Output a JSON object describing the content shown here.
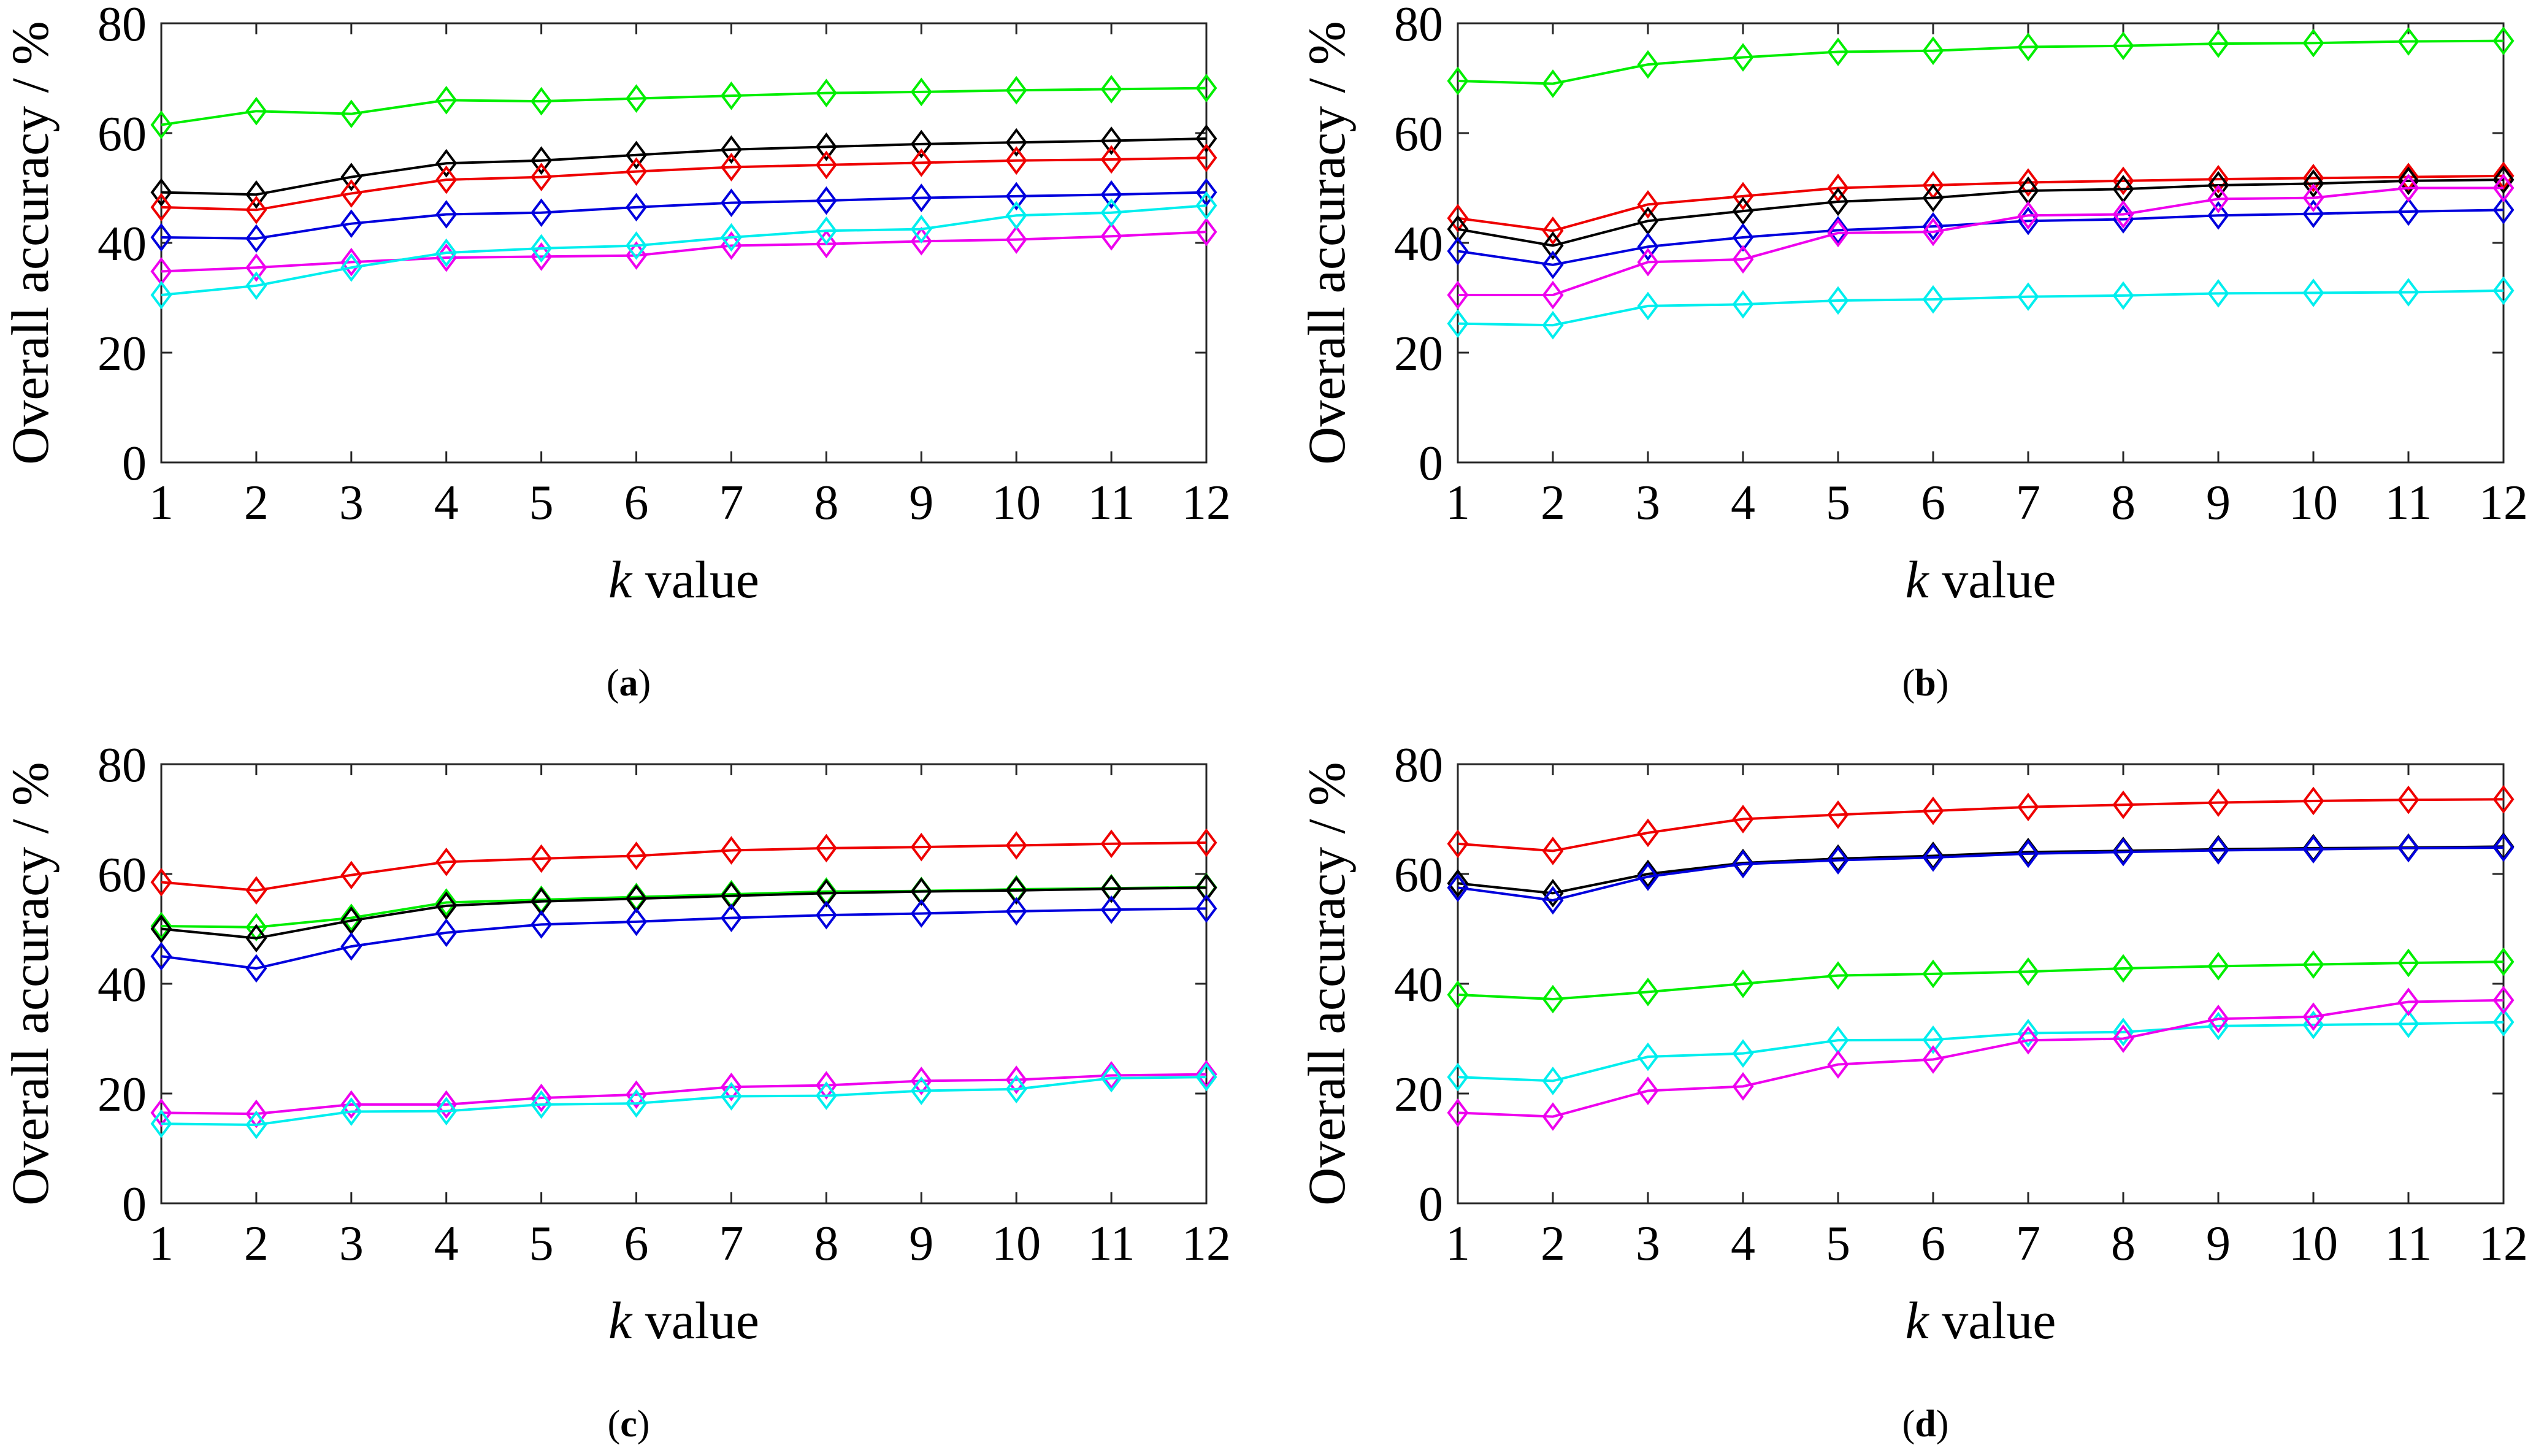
{
  "chart_data": [
    {
      "type": "line",
      "panel": "a",
      "caption_letter": "a",
      "x": [
        1,
        2,
        3,
        4,
        5,
        6,
        7,
        8,
        9,
        10,
        11,
        12
      ],
      "xlabel_var": "k",
      "xlabel_rest": " value",
      "ylabel": "Overall accuracy / %",
      "ylim": [
        0,
        80
      ],
      "xlim": [
        1,
        12
      ],
      "yticks": [
        0,
        20,
        40,
        60,
        80
      ],
      "series": [
        {
          "name": "green",
          "color": "#00ee00",
          "values": [
            61.5,
            64,
            63.5,
            66,
            65.8,
            66.3,
            66.8,
            67.3,
            67.5,
            67.8,
            68,
            68.2
          ]
        },
        {
          "name": "black",
          "color": "#000000",
          "values": [
            49.2,
            48.8,
            52,
            54.5,
            55,
            56,
            57,
            57.5,
            58,
            58.3,
            58.6,
            59
          ]
        },
        {
          "name": "red",
          "color": "#ee0000",
          "values": [
            46.5,
            46,
            49,
            51.5,
            52,
            53,
            53.8,
            54.2,
            54.6,
            55,
            55.2,
            55.5
          ]
        },
        {
          "name": "blue",
          "color": "#0000dd",
          "values": [
            41,
            40.8,
            43.5,
            45.2,
            45.5,
            46.5,
            47.3,
            47.7,
            48.2,
            48.5,
            48.8,
            49.2
          ]
        },
        {
          "name": "magenta",
          "color": "#ee00ee",
          "values": [
            34.8,
            35.5,
            36.5,
            37.3,
            37.5,
            37.7,
            39.5,
            39.8,
            40.3,
            40.6,
            41.2,
            42
          ]
        },
        {
          "name": "cyan",
          "color": "#00eeee",
          "values": [
            30.5,
            32.2,
            35.5,
            38.2,
            39,
            39.5,
            41,
            42.2,
            42.5,
            45,
            45.5,
            46.8
          ]
        }
      ]
    },
    {
      "type": "line",
      "panel": "b",
      "caption_letter": "b",
      "x": [
        1,
        2,
        3,
        4,
        5,
        6,
        7,
        8,
        9,
        10,
        11,
        12
      ],
      "xlabel_var": "k",
      "xlabel_rest": " value",
      "ylabel": "Overall accuracy / %",
      "ylim": [
        0,
        80
      ],
      "xlim": [
        1,
        12
      ],
      "yticks": [
        0,
        20,
        40,
        60,
        80
      ],
      "series": [
        {
          "name": "green",
          "color": "#00ee00",
          "values": [
            69.5,
            69,
            72.5,
            73.8,
            74.8,
            75,
            75.7,
            75.9,
            76.3,
            76.4,
            76.7,
            76.8
          ]
        },
        {
          "name": "red",
          "color": "#ee0000",
          "values": [
            44.5,
            42.2,
            47,
            48.5,
            50,
            50.5,
            51,
            51.3,
            51.6,
            51.8,
            52,
            52.2
          ]
        },
        {
          "name": "black",
          "color": "#000000",
          "values": [
            42.5,
            39.5,
            44,
            45.8,
            47.5,
            48.2,
            49.5,
            49.8,
            50.5,
            50.8,
            51.3,
            51.5
          ]
        },
        {
          "name": "blue",
          "color": "#0000dd",
          "values": [
            38.5,
            36,
            39.3,
            41,
            42.3,
            43,
            44,
            44.3,
            45,
            45.3,
            45.7,
            46
          ]
        },
        {
          "name": "magenta",
          "color": "#ee00ee",
          "values": [
            30.5,
            30.5,
            36.5,
            37,
            41.8,
            42,
            45,
            45.2,
            48,
            48.2,
            50,
            50
          ]
        },
        {
          "name": "cyan",
          "color": "#00eeee",
          "values": [
            25.3,
            25,
            28.5,
            28.8,
            29.5,
            29.7,
            30.2,
            30.4,
            30.8,
            30.9,
            31,
            31.3
          ]
        }
      ]
    },
    {
      "type": "line",
      "panel": "c",
      "caption_letter": "c",
      "x": [
        1,
        2,
        3,
        4,
        5,
        6,
        7,
        8,
        9,
        10,
        11,
        12
      ],
      "xlabel_var": "k",
      "xlabel_rest": " value",
      "ylabel": "Overall accuracy / %",
      "ylim": [
        0,
        80
      ],
      "xlim": [
        1,
        12
      ],
      "yticks": [
        0,
        20,
        40,
        60,
        80
      ],
      "series": [
        {
          "name": "red",
          "color": "#ee0000",
          "values": [
            58.5,
            57,
            59.8,
            62.2,
            62.8,
            63.3,
            64.3,
            64.7,
            64.9,
            65.2,
            65.5,
            65.7
          ]
        },
        {
          "name": "green",
          "color": "#00ee00",
          "values": [
            50.5,
            50.3,
            52,
            54.8,
            55.3,
            55.8,
            56.3,
            56.8,
            56.9,
            57.2,
            57.4,
            57.6
          ]
        },
        {
          "name": "black",
          "color": "#000000",
          "values": [
            50,
            48.3,
            51.5,
            54.2,
            55,
            55.5,
            56,
            56.5,
            56.8,
            57,
            57.3,
            57.5
          ]
        },
        {
          "name": "blue",
          "color": "#0000dd",
          "values": [
            45,
            42.8,
            46.8,
            49.3,
            50.8,
            51.3,
            52,
            52.5,
            52.8,
            53.2,
            53.5,
            53.7
          ]
        },
        {
          "name": "magenta",
          "color": "#ee00ee",
          "values": [
            16.5,
            16.3,
            18,
            18,
            19.2,
            19.8,
            21.2,
            21.5,
            22.3,
            22.5,
            23.3,
            23.5
          ]
        },
        {
          "name": "cyan",
          "color": "#00eeee",
          "values": [
            14.5,
            14.3,
            16.7,
            16.8,
            18,
            18.2,
            19.5,
            19.6,
            20.5,
            20.8,
            22.8,
            23
          ]
        }
      ]
    },
    {
      "type": "line",
      "panel": "d",
      "caption_letter": "d",
      "x": [
        1,
        2,
        3,
        4,
        5,
        6,
        7,
        8,
        9,
        10,
        11,
        12
      ],
      "xlabel_var": "k",
      "xlabel_rest": " value",
      "ylabel": "Overall accuracy / %",
      "ylim": [
        0,
        80
      ],
      "xlim": [
        1,
        12
      ],
      "yticks": [
        0,
        20,
        40,
        60,
        80
      ],
      "series": [
        {
          "name": "red",
          "color": "#ee0000",
          "values": [
            65.5,
            64.2,
            67.5,
            70,
            70.8,
            71.5,
            72.2,
            72.6,
            73,
            73.3,
            73.5,
            73.6
          ]
        },
        {
          "name": "black",
          "color": "#000000",
          "values": [
            58.3,
            56.5,
            60,
            62,
            62.8,
            63.3,
            64,
            64.2,
            64.5,
            64.7,
            64.8,
            65
          ]
        },
        {
          "name": "blue",
          "color": "#0000dd",
          "values": [
            57.5,
            55.2,
            59.5,
            61.8,
            62.5,
            63,
            63.7,
            64,
            64.3,
            64.5,
            64.7,
            64.8
          ]
        },
        {
          "name": "green",
          "color": "#00ee00",
          "values": [
            38,
            37.2,
            38.5,
            40,
            41.5,
            41.8,
            42.2,
            42.8,
            43.2,
            43.5,
            43.8,
            44
          ]
        },
        {
          "name": "cyan",
          "color": "#00eeee",
          "values": [
            23,
            22.3,
            26.7,
            27.3,
            29.7,
            29.8,
            31,
            31.2,
            32.3,
            32.5,
            32.7,
            33
          ]
        },
        {
          "name": "magenta",
          "color": "#ee00ee",
          "values": [
            16.5,
            15.8,
            20.5,
            21.3,
            25.3,
            26.2,
            29.7,
            30,
            33.6,
            34,
            36.7,
            37
          ]
        }
      ]
    }
  ]
}
